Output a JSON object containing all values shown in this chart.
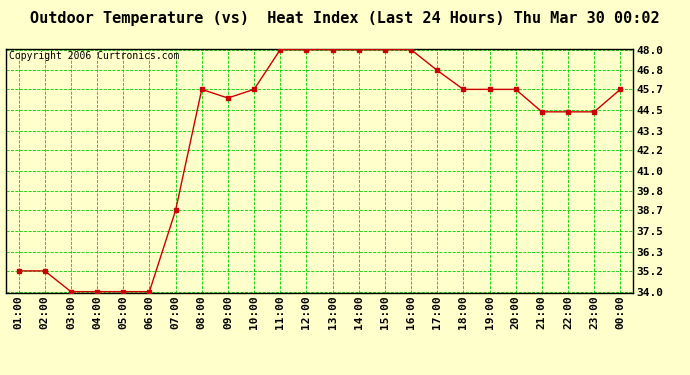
{
  "title": "Outdoor Temperature (vs)  Heat Index (Last 24 Hours) Thu Mar 30 00:02",
  "copyright": "Copyright 2006 Curtronics.com",
  "x_labels": [
    "01:00",
    "02:00",
    "03:00",
    "04:00",
    "05:00",
    "06:00",
    "07:00",
    "08:00",
    "09:00",
    "10:00",
    "11:00",
    "12:00",
    "13:00",
    "14:00",
    "15:00",
    "16:00",
    "17:00",
    "18:00",
    "19:00",
    "20:00",
    "21:00",
    "22:00",
    "23:00",
    "00:00"
  ],
  "y_values": [
    35.2,
    35.2,
    34.0,
    34.0,
    34.0,
    34.0,
    38.7,
    45.7,
    45.2,
    45.7,
    48.0,
    48.0,
    48.0,
    48.0,
    48.0,
    48.0,
    46.8,
    45.7,
    45.7,
    45.7,
    44.4,
    44.4,
    44.4,
    45.7
  ],
  "y_min": 34.0,
  "y_max": 48.0,
  "y_ticks": [
    34.0,
    35.2,
    36.3,
    37.5,
    38.7,
    39.8,
    41.0,
    42.2,
    43.3,
    44.5,
    45.7,
    46.8,
    48.0
  ],
  "y_tick_labels": [
    "34.0",
    "35.2",
    "36.3",
    "37.5",
    "38.7",
    "39.8",
    "41.0",
    "42.2",
    "43.3",
    "44.5",
    "45.7",
    "46.8",
    "48.0"
  ],
  "line_color": "#cc0000",
  "marker_color": "#cc0000",
  "background_color": "#ffffcc",
  "plot_bg_color": "#ffffcc",
  "grid_color": "#00cc00",
  "title_fontsize": 11,
  "copyright_fontsize": 7,
  "tick_fontsize": 8
}
